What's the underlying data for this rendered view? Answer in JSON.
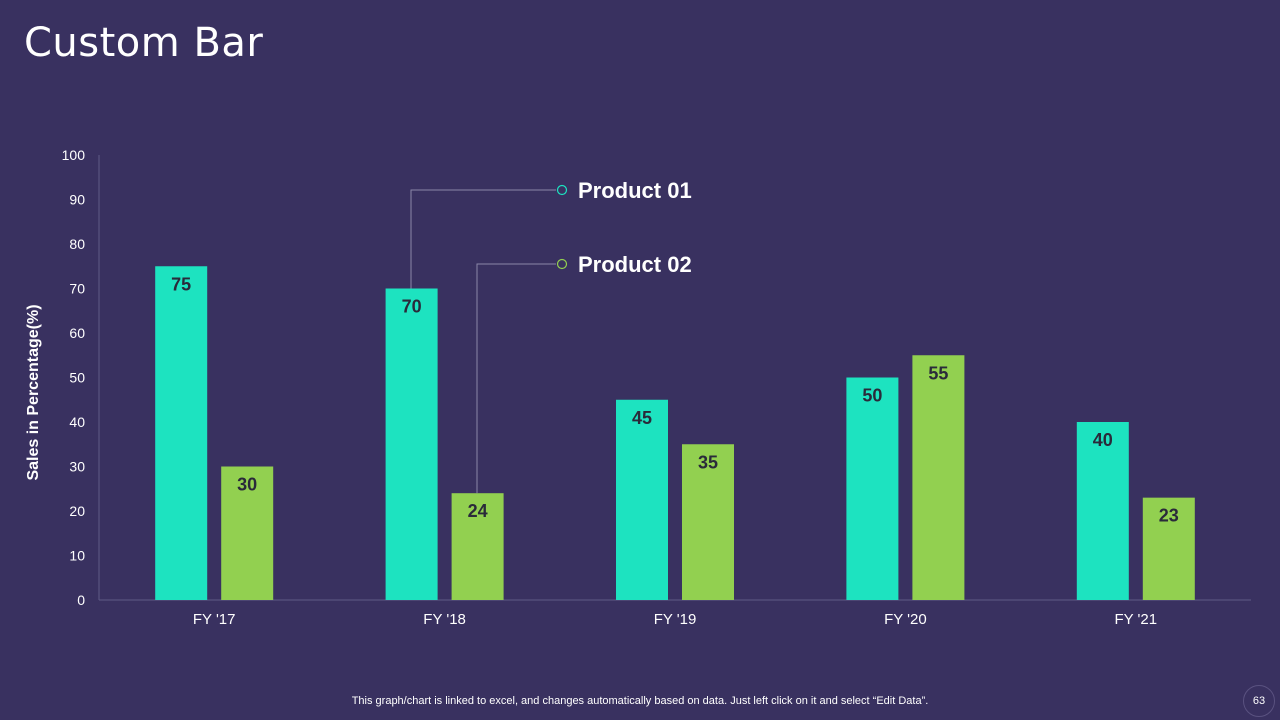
{
  "slide": {
    "title": "Custom Bar",
    "footer_note": "This graph/chart is linked to excel,  and changes automatically based on data. Just left click on it and select “Edit Data”.",
    "page_number": "63"
  },
  "colors": {
    "background": "#393160",
    "product01": "#1de3c0",
    "product02": "#92d050",
    "axis": "#5e5a86",
    "text": "#ffffff",
    "label": "#2a2a3a"
  },
  "chart_data": {
    "type": "bar",
    "title": "",
    "xlabel": "",
    "ylabel": "Sales in Percentage(%)",
    "ylim": [
      0,
      100
    ],
    "yticks": [
      0,
      10,
      20,
      30,
      40,
      50,
      60,
      70,
      80,
      90,
      100
    ],
    "categories": [
      "FY '17",
      "FY '18",
      "FY '19",
      "FY '20",
      "FY '21"
    ],
    "series": [
      {
        "name": "Product 01",
        "values": [
          75,
          70,
          45,
          50,
          40
        ]
      },
      {
        "name": "Product 02",
        "values": [
          30,
          24,
          35,
          55,
          23
        ]
      }
    ],
    "grid": false,
    "legend": "callouts"
  }
}
